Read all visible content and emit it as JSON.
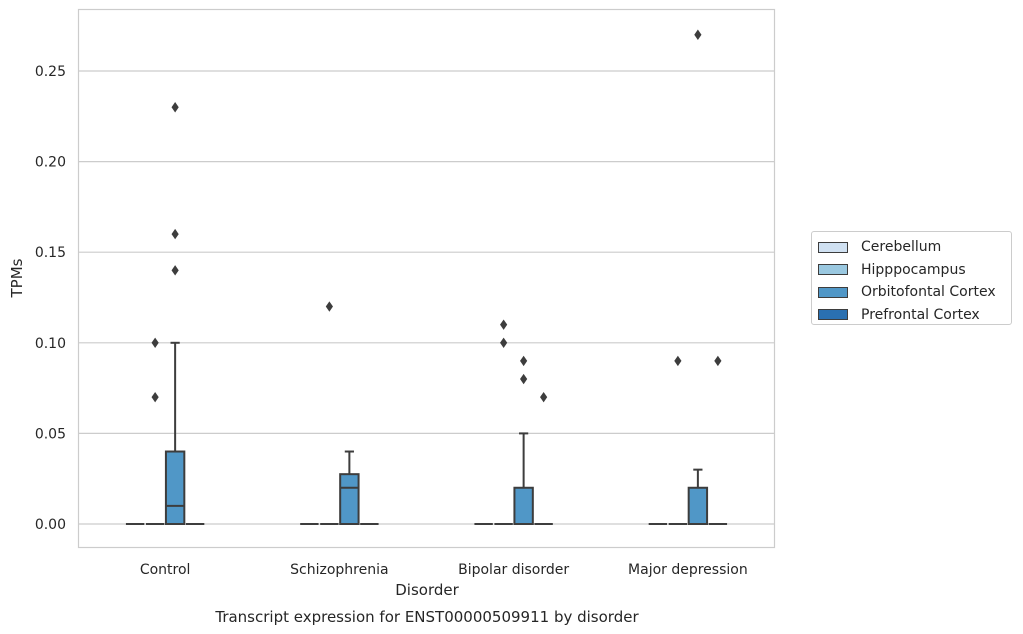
{
  "chart_data": {
    "type": "box",
    "title": "",
    "xlabel": "Disorder",
    "ylabel": "TPMs",
    "caption": "Transcript expression for ENST00000509911 by disorder",
    "categories": [
      "Control",
      "Schizophrenia",
      "Bipolar disorder",
      "Major depression"
    ],
    "ylim": [
      -0.013,
      0.285
    ],
    "yticks": [
      0.0,
      0.05,
      0.1,
      0.15,
      0.2,
      0.25
    ],
    "ytick_labels": [
      "0.00",
      "0.05",
      "0.10",
      "0.15",
      "0.20",
      "0.25"
    ],
    "grid": true,
    "legend_position": "right",
    "series": [
      {
        "name": "Cerebellum",
        "color": "#d0e1f2",
        "boxes": [
          {
            "q1": 0,
            "median": 0,
            "q3": 0,
            "whisker_low": 0,
            "whisker_high": 0,
            "outliers": []
          },
          {
            "q1": 0,
            "median": 0,
            "q3": 0,
            "whisker_low": 0,
            "whisker_high": 0,
            "outliers": []
          },
          {
            "q1": 0,
            "median": 0,
            "q3": 0,
            "whisker_low": 0,
            "whisker_high": 0,
            "outliers": []
          },
          {
            "q1": 0,
            "median": 0,
            "q3": 0,
            "whisker_low": 0,
            "whisker_high": 0,
            "outliers": []
          }
        ]
      },
      {
        "name": "Hipppocampus",
        "color": "#9ac8e0",
        "boxes": [
          {
            "q1": 0,
            "median": 0,
            "q3": 0,
            "whisker_low": 0,
            "whisker_high": 0,
            "outliers": [
              0.07
            ]
          },
          {
            "q1": 0,
            "median": 0,
            "q3": 0,
            "whisker_low": 0,
            "whisker_high": 0,
            "outliers": []
          },
          {
            "q1": 0,
            "median": 0,
            "q3": 0,
            "whisker_low": 0,
            "whisker_high": 0,
            "outliers": []
          },
          {
            "q1": 0,
            "median": 0,
            "q3": 0,
            "whisker_low": 0,
            "whisker_high": 0,
            "outliers": []
          }
        ]
      },
      {
        "name": "Orbitofontal Cortex",
        "color": "#5097c7",
        "boxes": [
          {
            "q1": 0,
            "median": 0.01,
            "q3": 0.04,
            "whisker_low": 0,
            "whisker_high": 0.1,
            "outliers": [
              0.14,
              0.16,
              0.23
            ]
          },
          {
            "q1": 0,
            "median": 0.02,
            "q3": 0.0275,
            "whisker_low": 0,
            "whisker_high": 0.04,
            "outliers": []
          },
          {
            "q1": 0,
            "median": 0,
            "q3": 0.02,
            "whisker_low": 0,
            "whisker_high": 0.05,
            "outliers": [
              0.08,
              0.09
            ]
          },
          {
            "q1": 0,
            "median": 0,
            "q3": 0.02,
            "whisker_low": 0,
            "whisker_high": 0.03,
            "outliers": [
              0.27
            ]
          }
        ]
      },
      {
        "name": "Prefrontal Cortex",
        "color": "#2a70b1",
        "boxes": [
          {
            "q1": 0,
            "median": 0,
            "q3": 0,
            "whisker_low": 0,
            "whisker_high": 0,
            "outliers": []
          },
          {
            "q1": 0,
            "median": 0,
            "q3": 0,
            "whisker_low": 0,
            "whisker_high": 0,
            "outliers": []
          },
          {
            "q1": 0,
            "median": 0,
            "q3": 0,
            "whisker_low": 0,
            "whisker_high": 0,
            "outliers": [
              0.07
            ]
          },
          {
            "q1": 0,
            "median": 0,
            "q3": 0,
            "whisker_low": 0,
            "whisker_high": 0,
            "outliers": [
              0.09
            ]
          }
        ]
      }
    ],
    "extra_outliers": [
      {
        "category": 0,
        "series": 1,
        "value": 0.1
      },
      {
        "category": 1,
        "series": 1,
        "value": 0.12
      },
      {
        "category": 2,
        "series": 1,
        "value": 0.1
      },
      {
        "category": 2,
        "series": 1,
        "value": 0.11
      },
      {
        "category": 3,
        "series": 1,
        "value": 0.09
      }
    ]
  }
}
